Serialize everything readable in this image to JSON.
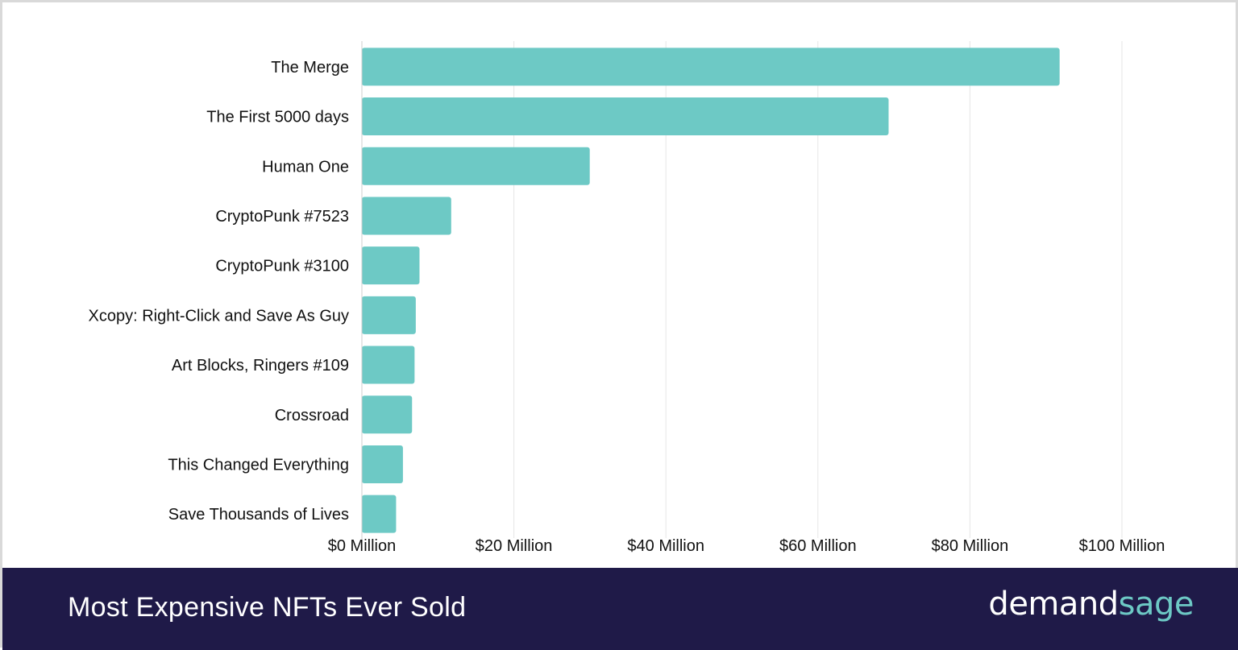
{
  "chart_data": {
    "type": "bar",
    "orientation": "horizontal",
    "title": "Most Expensive NFTs Ever Sold",
    "categories": [
      "The Merge",
      "The First 5000 days",
      "Human One",
      "CryptoPunk #7523",
      "CryptoPunk #3100",
      "Xcopy: Right-Click and Save As Guy",
      "Art Blocks, Ringers #109",
      "Crossroad",
      "This Changed Everything",
      "Save Thousands of Lives"
    ],
    "values": [
      91.8,
      69.3,
      29.98,
      11.75,
      7.58,
      7.09,
      6.93,
      6.6,
      5.4,
      4.5
    ],
    "xlim": [
      0,
      100
    ],
    "xticks": [
      "$0 Million",
      "$20 Million",
      "$40 Million",
      "$60 Million",
      "$80 Million",
      "$100 Million"
    ],
    "grid": true,
    "bar_color": "#6dc9c5"
  },
  "footer": {
    "title": "Most Expensive NFTs Ever Sold",
    "logo_part1": "demand",
    "logo_part2": "sage"
  },
  "colors": {
    "footer_bg": "#1f1a48",
    "accent": "#6dc9c5",
    "grid": "#e6e6e6",
    "text": "#111111"
  }
}
